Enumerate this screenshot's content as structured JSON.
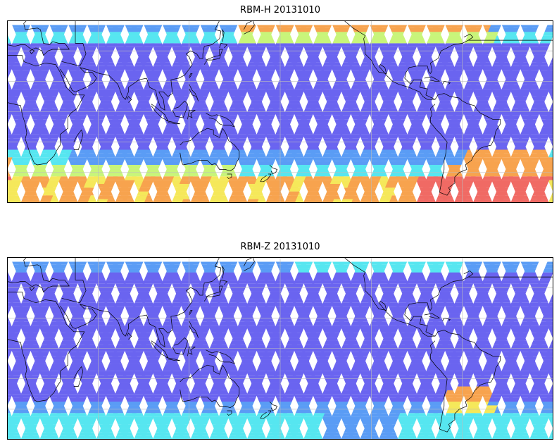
{
  "figure": {
    "panels": [
      {
        "title": "RBM-H 20131010",
        "mode": "H"
      },
      {
        "title": "RBM-Z 20131010",
        "mode": "Z"
      }
    ]
  },
  "colors": {
    "low": "#6a64f0",
    "low_mid": "#5a9cf5",
    "mid": "#56e6f0",
    "mid_high": "#c8f57a",
    "high": "#f5e85a",
    "higher": "#f7a34e",
    "max": "#f06a64",
    "coast": "#000000",
    "grid": "#bdbdbd",
    "frame": "#000000"
  },
  "map": {
    "projection": "equirectangular",
    "lon_range": [
      0,
      360
    ],
    "lat_range": [
      -60,
      60
    ],
    "data_lat_range": [
      -60,
      57
    ],
    "swath_count": 29,
    "gridlines": true
  }
}
